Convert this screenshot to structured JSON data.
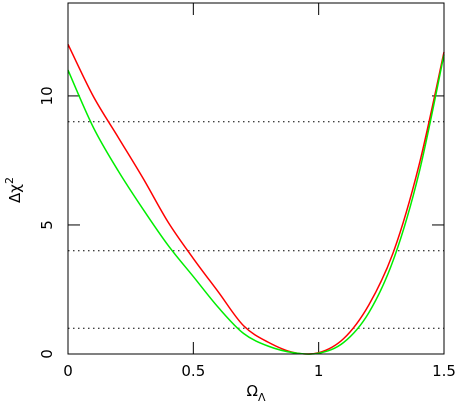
{
  "chart_data": {
    "type": "line",
    "x_label": "Ω",
    "x_label_subscript": "Λ",
    "y_label": "Δχ",
    "y_label_superscript": "2",
    "x": [
      0,
      0.1,
      0.2,
      0.3,
      0.4,
      0.5,
      0.6,
      0.7,
      0.8,
      0.9,
      1.0,
      1.1,
      1.2,
      1.3,
      1.4,
      1.5
    ],
    "series": [
      {
        "color": "#ff0000",
        "values": [
          12,
          10.0,
          8.4,
          6.8,
          5.1,
          3.7,
          2.4,
          1.1,
          0.45,
          0.06,
          0.05,
          0.6,
          1.9,
          4.0,
          7.3,
          11.7
        ]
      },
      {
        "color": "#00ee00",
        "values": [
          11,
          8.8,
          7.1,
          5.6,
          4.2,
          3.0,
          1.8,
          0.8,
          0.3,
          0.05,
          0.03,
          0.45,
          1.6,
          3.7,
          7.0,
          11.6
        ]
      }
    ],
    "reference_lines": [
      1,
      4,
      9
    ],
    "xlim": [
      0,
      1.5
    ],
    "ylim": [
      0,
      13.6
    ],
    "xticks": [
      0,
      0.5,
      1,
      1.5
    ],
    "yticks": [
      0,
      5,
      10
    ]
  }
}
